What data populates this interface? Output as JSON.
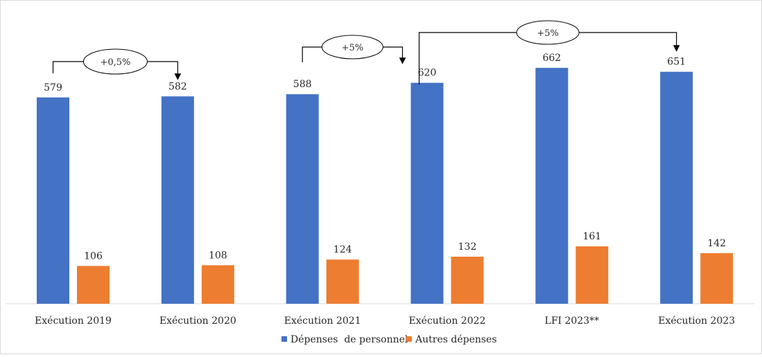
{
  "chart_data": {
    "type": "bar",
    "categories": [
      "Exécution 2019",
      "Exécution 2020",
      "Exécution 2021",
      "Exécution 2022",
      "LFI 2023**",
      "Exécution 2023"
    ],
    "series": [
      {
        "name": "Dépenses  de personnel",
        "color": "#4472C4",
        "values": [
          579,
          582,
          588,
          620,
          662,
          651
        ]
      },
      {
        "name": "Autres dépenses",
        "color": "#ED7D31",
        "values": [
          106,
          108,
          124,
          132,
          161,
          142
        ]
      }
    ],
    "ylim": [
      0,
      700
    ],
    "grid": false,
    "legend": "bottom",
    "title": "",
    "xlabel": "",
    "ylabel": "",
    "annotations": [
      {
        "text": "+0,5%",
        "from": "Exécution 2019",
        "to": "Exécution 2020"
      },
      {
        "text": "+5%",
        "from": "Exécution 2021",
        "to": "Exécution 2022"
      },
      {
        "text": "+5%",
        "from": "Exécution 2022",
        "to": "Exécution 2023"
      }
    ]
  }
}
